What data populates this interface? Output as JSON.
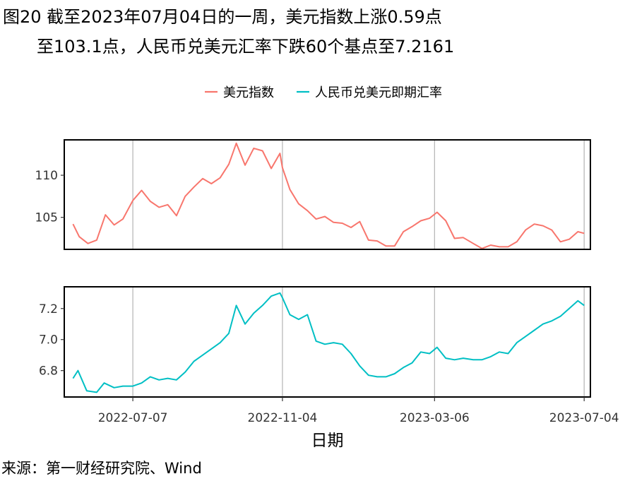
{
  "title": {
    "line1": "图20  截至2023年07月04日的一周，美元指数上涨0.59点",
    "line2": "至103.1点，人民币兑美元汇率下跌60个基点至7.2161"
  },
  "source": "来源：第一财经研究院、Wind",
  "colors": {
    "dxy": "#F8766D",
    "cny": "#00BFC4",
    "grid": "#b3b3b3",
    "frame": "#000000"
  },
  "chart_data": {
    "type": "line",
    "xlabel": "日期",
    "x_ticks": [
      "2022-07-07",
      "2022-11-04",
      "2023-03-06",
      "2023-07-04"
    ],
    "x_range": [
      "2022-05-13",
      "2023-07-09"
    ],
    "legend_position": "top-center",
    "grid": "vertical lines only",
    "panels": [
      {
        "series_name": "美元指数",
        "color": "#F8766D",
        "ylim": [
          101.2,
          114.2
        ],
        "y_ticks": [
          105,
          110
        ],
        "points": [
          [
            "2022-05-20",
            104.2
          ],
          [
            "2022-05-25",
            102.7
          ],
          [
            "2022-06-01",
            101.9
          ],
          [
            "2022-06-08",
            102.3
          ],
          [
            "2022-06-15",
            105.3
          ],
          [
            "2022-06-22",
            104.1
          ],
          [
            "2022-06-29",
            104.8
          ],
          [
            "2022-07-07",
            107.0
          ],
          [
            "2022-07-14",
            108.2
          ],
          [
            "2022-07-21",
            106.9
          ],
          [
            "2022-07-28",
            106.2
          ],
          [
            "2022-08-04",
            106.5
          ],
          [
            "2022-08-11",
            105.2
          ],
          [
            "2022-08-18",
            107.5
          ],
          [
            "2022-08-25",
            108.6
          ],
          [
            "2022-09-01",
            109.6
          ],
          [
            "2022-09-08",
            109.0
          ],
          [
            "2022-09-15",
            109.7
          ],
          [
            "2022-09-22",
            111.3
          ],
          [
            "2022-09-28",
            113.8
          ],
          [
            "2022-10-05",
            111.2
          ],
          [
            "2022-10-12",
            113.2
          ],
          [
            "2022-10-19",
            112.9
          ],
          [
            "2022-10-26",
            110.8
          ],
          [
            "2022-11-02",
            112.6
          ],
          [
            "2022-11-04",
            110.9
          ],
          [
            "2022-11-10",
            108.3
          ],
          [
            "2022-11-17",
            106.6
          ],
          [
            "2022-11-24",
            105.8
          ],
          [
            "2022-12-01",
            104.8
          ],
          [
            "2022-12-08",
            105.1
          ],
          [
            "2022-12-15",
            104.4
          ],
          [
            "2022-12-22",
            104.3
          ],
          [
            "2022-12-29",
            103.8
          ],
          [
            "2023-01-05",
            104.5
          ],
          [
            "2023-01-12",
            102.3
          ],
          [
            "2023-01-19",
            102.2
          ],
          [
            "2023-01-26",
            101.6
          ],
          [
            "2023-02-02",
            101.6
          ],
          [
            "2023-02-09",
            103.3
          ],
          [
            "2023-02-16",
            103.9
          ],
          [
            "2023-02-23",
            104.6
          ],
          [
            "2023-03-02",
            104.9
          ],
          [
            "2023-03-08",
            105.6
          ],
          [
            "2023-03-15",
            104.6
          ],
          [
            "2023-03-22",
            102.5
          ],
          [
            "2023-03-29",
            102.6
          ],
          [
            "2023-04-06",
            101.9
          ],
          [
            "2023-04-13",
            101.3
          ],
          [
            "2023-04-20",
            101.7
          ],
          [
            "2023-04-27",
            101.5
          ],
          [
            "2023-05-04",
            101.5
          ],
          [
            "2023-05-11",
            102.1
          ],
          [
            "2023-05-18",
            103.5
          ],
          [
            "2023-05-25",
            104.2
          ],
          [
            "2023-06-01",
            104.0
          ],
          [
            "2023-06-08",
            103.5
          ],
          [
            "2023-06-15",
            102.1
          ],
          [
            "2023-06-22",
            102.4
          ],
          [
            "2023-06-29",
            103.3
          ],
          [
            "2023-07-04",
            103.1
          ]
        ]
      },
      {
        "series_name": "人民币兑美元即期汇率",
        "color": "#00BFC4",
        "ylim": [
          6.63,
          7.34
        ],
        "y_ticks": [
          6.8,
          7.0,
          7.2
        ],
        "points": [
          [
            "2022-05-20",
            6.75
          ],
          [
            "2022-05-24",
            6.8
          ],
          [
            "2022-05-31",
            6.67
          ],
          [
            "2022-06-08",
            6.66
          ],
          [
            "2022-06-14",
            6.72
          ],
          [
            "2022-06-22",
            6.69
          ],
          [
            "2022-06-29",
            6.7
          ],
          [
            "2022-07-07",
            6.7
          ],
          [
            "2022-07-14",
            6.72
          ],
          [
            "2022-07-21",
            6.76
          ],
          [
            "2022-07-28",
            6.74
          ],
          [
            "2022-08-04",
            6.75
          ],
          [
            "2022-08-11",
            6.74
          ],
          [
            "2022-08-18",
            6.79
          ],
          [
            "2022-08-25",
            6.86
          ],
          [
            "2022-09-01",
            6.9
          ],
          [
            "2022-09-08",
            6.94
          ],
          [
            "2022-09-15",
            6.98
          ],
          [
            "2022-09-22",
            7.04
          ],
          [
            "2022-09-28",
            7.22
          ],
          [
            "2022-10-05",
            7.1
          ],
          [
            "2022-10-12",
            7.17
          ],
          [
            "2022-10-19",
            7.22
          ],
          [
            "2022-10-26",
            7.28
          ],
          [
            "2022-11-02",
            7.3
          ],
          [
            "2022-11-04",
            7.27
          ],
          [
            "2022-11-10",
            7.16
          ],
          [
            "2022-11-17",
            7.13
          ],
          [
            "2022-11-24",
            7.16
          ],
          [
            "2022-12-01",
            6.99
          ],
          [
            "2022-12-08",
            6.97
          ],
          [
            "2022-12-15",
            6.98
          ],
          [
            "2022-12-22",
            6.97
          ],
          [
            "2022-12-29",
            6.91
          ],
          [
            "2023-01-05",
            6.83
          ],
          [
            "2023-01-12",
            6.77
          ],
          [
            "2023-01-19",
            6.76
          ],
          [
            "2023-01-26",
            6.76
          ],
          [
            "2023-02-02",
            6.78
          ],
          [
            "2023-02-09",
            6.82
          ],
          [
            "2023-02-16",
            6.85
          ],
          [
            "2023-02-23",
            6.92
          ],
          [
            "2023-03-02",
            6.91
          ],
          [
            "2023-03-08",
            6.95
          ],
          [
            "2023-03-15",
            6.88
          ],
          [
            "2023-03-22",
            6.87
          ],
          [
            "2023-03-29",
            6.88
          ],
          [
            "2023-04-06",
            6.87
          ],
          [
            "2023-04-13",
            6.87
          ],
          [
            "2023-04-20",
            6.89
          ],
          [
            "2023-04-27",
            6.92
          ],
          [
            "2023-05-04",
            6.91
          ],
          [
            "2023-05-11",
            6.98
          ],
          [
            "2023-05-18",
            7.02
          ],
          [
            "2023-05-25",
            7.06
          ],
          [
            "2023-06-01",
            7.1
          ],
          [
            "2023-06-08",
            7.12
          ],
          [
            "2023-06-15",
            7.15
          ],
          [
            "2023-06-22",
            7.2
          ],
          [
            "2023-06-29",
            7.25
          ],
          [
            "2023-07-04",
            7.22
          ]
        ]
      }
    ]
  }
}
